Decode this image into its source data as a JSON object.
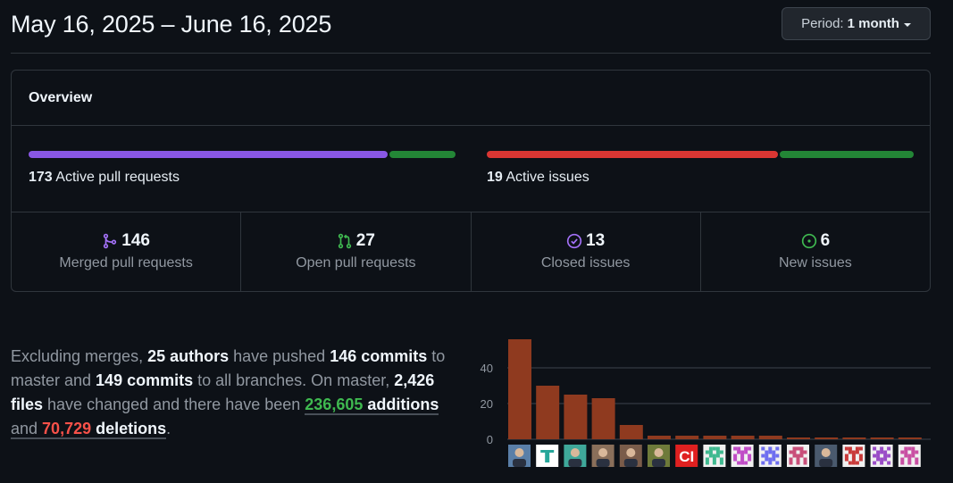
{
  "header": {
    "title": "May 16, 2025 – June 16, 2025",
    "period_label": "Period:",
    "period_value": "1 month"
  },
  "overview": {
    "title": "Overview",
    "pull_requests": {
      "count": "173",
      "label": "Active pull requests",
      "merged_fraction": 0.844,
      "merged_color": "#8957e5",
      "open_color": "#238636"
    },
    "issues": {
      "count": "19",
      "label": "Active issues",
      "closed_fraction": 0.684,
      "closed_color": "#da3633",
      "open_color": "#238636"
    },
    "stats": [
      {
        "value": "146",
        "label": "Merged pull requests",
        "icon": "git-merge-icon",
        "color": "#a371f7"
      },
      {
        "value": "27",
        "label": "Open pull requests",
        "icon": "git-pull-request-icon",
        "color": "#3fb950"
      },
      {
        "value": "13",
        "label": "Closed issues",
        "icon": "issue-closed-icon",
        "color": "#a371f7"
      },
      {
        "value": "6",
        "label": "New issues",
        "icon": "issue-opened-icon",
        "color": "#3fb950"
      }
    ]
  },
  "summary": {
    "t1": "Excluding merges, ",
    "authors": "25 authors",
    "t2": " have pushed ",
    "commits_master": "146 commits",
    "t3": " to master and ",
    "commits_all": "149 commits",
    "t4": " to all branches. On master, ",
    "files": "2,426 files",
    "t5": " have changed and there have been ",
    "additions_num": "236,605",
    "additions_word": " additions",
    "t6": " and ",
    "deletions_num": "70,729",
    "deletions_word": " deletions",
    "t7": "."
  },
  "chart_data": {
    "type": "bar",
    "y_ticks": [
      "0",
      "20",
      "40"
    ],
    "ylim": [
      0,
      58
    ],
    "values": [
      56,
      30,
      25,
      23,
      8,
      2,
      2,
      2,
      2,
      2,
      1,
      1,
      1,
      1,
      1
    ],
    "bar_color": "#8f3a1f",
    "avatars": [
      "avatar-photo",
      "avatar-logo-t",
      "avatar-photo",
      "avatar-photo",
      "avatar-photo",
      "avatar-photo",
      "avatar-ci",
      "avatar-identicon",
      "avatar-identicon",
      "avatar-identicon",
      "avatar-identicon",
      "avatar-photo",
      "avatar-identicon",
      "avatar-identicon",
      "avatar-identicon"
    ],
    "ci_text": "CI"
  }
}
